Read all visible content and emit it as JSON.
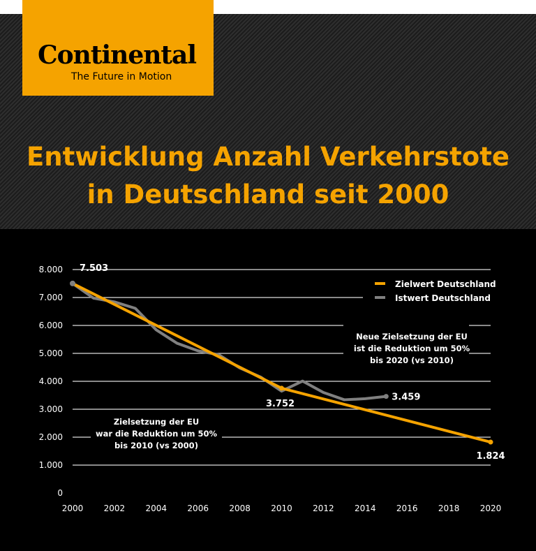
{
  "brand": {
    "name": "Continental",
    "tagline": "The Future in Motion"
  },
  "title": [
    "Entwicklung Anzahl Verkehrstote",
    "in Deutschland seit 2000"
  ],
  "chart_data": {
    "type": "line",
    "title": "Entwicklung Anzahl Verkehrstote in Deutschland seit 2000",
    "xlim": [
      2000,
      2020
    ],
    "ylim": [
      0,
      8000
    ],
    "xticks": [
      "2000",
      "2002",
      "2004",
      "2006",
      "2008",
      "2010",
      "2012",
      "2014",
      "2016",
      "2018",
      "2020"
    ],
    "yticks": [
      "0",
      "1.000",
      "2.000",
      "3.000",
      "4.000",
      "5.000",
      "6.000",
      "7.000",
      "8.000"
    ],
    "grid": true,
    "legend_position": "top-right",
    "series": [
      {
        "name": "Zielwert Deutschland",
        "color": "#f5a300",
        "x": [
          2000,
          2010,
          2020
        ],
        "y": [
          7503,
          3752,
          1824
        ]
      },
      {
        "name": "Istwert Deutschland",
        "color": "#808080",
        "x": [
          2000,
          2001,
          2002,
          2003,
          2004,
          2005,
          2006,
          2007,
          2008,
          2009,
          2010,
          2011,
          2012,
          2013,
          2014,
          2015
        ],
        "y": [
          7503,
          6977,
          6842,
          6613,
          5842,
          5361,
          5091,
          4949,
          4477,
          4152,
          3648,
          4009,
          3600,
          3339,
          3377,
          3459
        ]
      }
    ],
    "data_labels": [
      {
        "text": "7.503",
        "x": 2000,
        "y": 7503
      },
      {
        "text": "3.752",
        "x": 2010,
        "y": 3752
      },
      {
        "text": "3.459",
        "x": 2015,
        "y": 3459
      },
      {
        "text": "1.824",
        "x": 2020,
        "y": 1824
      }
    ],
    "annotations": [
      {
        "lines": [
          "Neue Zielsetzung der EU",
          "ist die Reduktion um 50%",
          "bis 2020 (vs 2010)"
        ]
      },
      {
        "lines": [
          "Zielsetzung der EU",
          "war die Reduktion um 50%",
          "bis 2010 (vs 2000)"
        ]
      }
    ]
  }
}
